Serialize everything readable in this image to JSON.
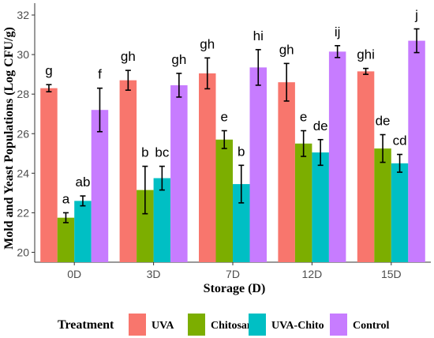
{
  "chart_data": {
    "type": "bar",
    "xlabel": "Storage (D)",
    "ylabel": "Mold and Yeast Populations (Log CFU/g)",
    "ylim": [
      19.5,
      32.6
    ],
    "yticks": [
      20,
      22,
      24,
      26,
      28,
      30,
      32
    ],
    "categories": [
      "0D",
      "3D",
      "7D",
      "12D",
      "15D"
    ],
    "legend_title": "Treatment",
    "legend_position": "bottom",
    "grid": false,
    "series": [
      {
        "name": "UVA",
        "color": "#F8766D",
        "values": [
          28.3,
          28.7,
          29.05,
          28.6,
          29.15
        ],
        "errors": [
          0.18,
          0.5,
          0.78,
          0.95,
          0.15
        ],
        "labels": [
          "g",
          "gh",
          "gh",
          "gh",
          "ghi"
        ]
      },
      {
        "name": "Chitosan",
        "color": "#7CAE00",
        "values": [
          21.75,
          23.15,
          25.7,
          25.5,
          25.25
        ],
        "errors": [
          0.25,
          1.2,
          0.45,
          0.65,
          0.7
        ],
        "labels": [
          "a",
          "b",
          "e",
          "e",
          "de"
        ]
      },
      {
        "name": "UVA-Chito",
        "color": "#00BFC4",
        "values": [
          22.6,
          23.75,
          23.45,
          25.05,
          24.5
        ],
        "errors": [
          0.25,
          0.6,
          0.95,
          0.65,
          0.45
        ],
        "labels": [
          "ab",
          "bc",
          "b",
          "de",
          "cd"
        ]
      },
      {
        "name": "Control",
        "color": "#C77CFF",
        "values": [
          27.2,
          28.45,
          29.35,
          30.15,
          30.7
        ],
        "errors": [
          1.1,
          0.6,
          0.9,
          0.3,
          0.6
        ],
        "labels": [
          "f",
          "gh",
          "hi",
          "ij",
          "j"
        ]
      }
    ]
  }
}
